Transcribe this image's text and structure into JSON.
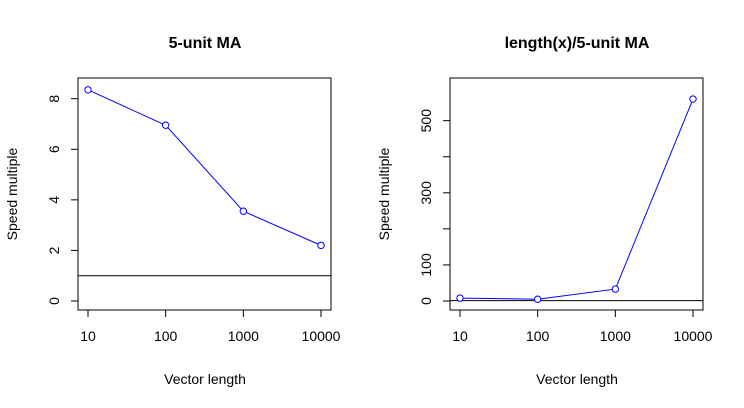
{
  "chart_data": [
    {
      "type": "line",
      "title": "5-unit MA",
      "xlabel": "Vector length",
      "ylabel": "Speed multiple",
      "x_scale": "log",
      "x": [
        10,
        100,
        1000,
        10000
      ],
      "x_tick_labels": [
        "10",
        "100",
        "1000",
        "10000"
      ],
      "y_ticks": [
        0,
        2,
        4,
        6,
        8
      ],
      "y_tick_labels": [
        "0",
        "2",
        "4",
        "6",
        "8"
      ],
      "ylim": [
        0,
        8.7
      ],
      "series": [
        {
          "values": [
            8.35,
            6.95,
            3.55,
            2.2
          ],
          "color": "#0000ff",
          "marker": "open-circle"
        }
      ],
      "reference_line": {
        "y": 1,
        "color": "#000000"
      },
      "grid": false
    },
    {
      "type": "line",
      "title": "length(x)/5-unit MA",
      "xlabel": "Vector length",
      "ylabel": "Speed multiple",
      "x_scale": "log",
      "x": [
        10,
        100,
        1000,
        10000
      ],
      "x_tick_labels": [
        "10",
        "100",
        "1000",
        "10000"
      ],
      "y_ticks": [
        0,
        100,
        200,
        300,
        400,
        500
      ],
      "y_tick_labels": [
        "0",
        "100",
        "",
        "300",
        "",
        "500"
      ],
      "ylim": [
        0,
        610
      ],
      "series": [
        {
          "values": [
            8,
            5,
            33,
            560
          ],
          "color": "#0000ff",
          "marker": "open-circle"
        }
      ],
      "reference_line": {
        "y": 1,
        "color": "#000000"
      },
      "grid": false
    }
  ]
}
